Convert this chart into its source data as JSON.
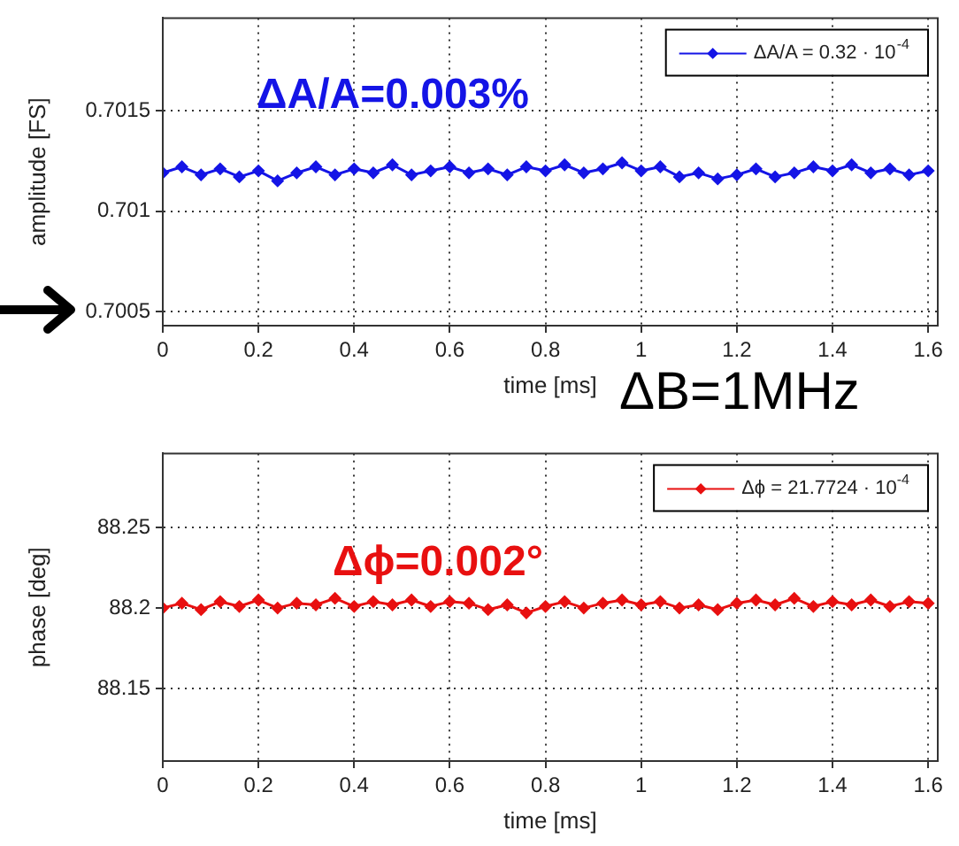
{
  "chart_data": [
    {
      "type": "line",
      "xlabel": "time [ms]",
      "ylabel": "amplitude [FS]",
      "x": [
        0,
        0.04,
        0.08,
        0.12,
        0.16,
        0.2,
        0.24,
        0.28,
        0.32,
        0.36,
        0.4,
        0.44,
        0.48,
        0.52,
        0.56,
        0.6,
        0.64,
        0.68,
        0.72,
        0.76,
        0.8,
        0.84,
        0.88,
        0.92,
        0.96,
        1,
        1.04,
        1.08,
        1.12,
        1.16,
        1.2,
        1.24,
        1.28,
        1.32,
        1.36,
        1.4,
        1.44,
        1.48,
        1.52,
        1.56,
        1.6
      ],
      "series": [
        {
          "name": "ΔA/A = 0.32 · 10$^{-4}$",
          "color": "#1414e6",
          "values": [
            0.70119,
            0.70122,
            0.70118,
            0.70121,
            0.70117,
            0.7012,
            0.70115,
            0.70119,
            0.70122,
            0.70118,
            0.70121,
            0.70119,
            0.70123,
            0.70118,
            0.7012,
            0.70122,
            0.70119,
            0.70121,
            0.70118,
            0.70122,
            0.7012,
            0.70123,
            0.70119,
            0.70121,
            0.70124,
            0.7012,
            0.70122,
            0.70117,
            0.70119,
            0.70116,
            0.70118,
            0.70121,
            0.70117,
            0.70119,
            0.70122,
            0.7012,
            0.70123,
            0.70119,
            0.70121,
            0.70118,
            0.7012
          ]
        }
      ],
      "xlim": [
        0,
        1.62
      ],
      "xticks": [
        0,
        0.2,
        0.4,
        0.6,
        0.8,
        1,
        1.2,
        1.4,
        1.6
      ],
      "ylim": [
        0.70043,
        0.70196
      ],
      "yticks": [
        0.7005,
        0.701,
        0.7015
      ],
      "grid": true,
      "legend": "top right",
      "marker": "diamond",
      "line_style": "solid",
      "annotations": [
        "ΔA/A=0.003%",
        "ΔB=1MHz"
      ]
    },
    {
      "type": "line",
      "xlabel": "time [ms]",
      "ylabel": "phase [deg]",
      "x": [
        0,
        0.04,
        0.08,
        0.12,
        0.16,
        0.2,
        0.24,
        0.28,
        0.32,
        0.36,
        0.4,
        0.44,
        0.48,
        0.52,
        0.56,
        0.6,
        0.64,
        0.68,
        0.72,
        0.76,
        0.8,
        0.84,
        0.88,
        0.92,
        0.96,
        1,
        1.04,
        1.08,
        1.12,
        1.16,
        1.2,
        1.24,
        1.28,
        1.32,
        1.36,
        1.4,
        1.44,
        1.48,
        1.52,
        1.56,
        1.6
      ],
      "series": [
        {
          "name": "Δϕ = 21.7724 · 10$^{-4}$",
          "color": "#e81010",
          "values": [
            88.2,
            88.203,
            88.199,
            88.204,
            88.201,
            88.205,
            88.2,
            88.203,
            88.202,
            88.206,
            88.201,
            88.204,
            88.202,
            88.205,
            88.201,
            88.204,
            88.203,
            88.199,
            88.202,
            88.197,
            88.201,
            88.204,
            88.2,
            88.203,
            88.205,
            88.202,
            88.204,
            88.2,
            88.202,
            88.199,
            88.203,
            88.205,
            88.202,
            88.206,
            88.201,
            88.204,
            88.202,
            88.205,
            88.201,
            88.204,
            88.203
          ]
        }
      ],
      "xlim": [
        0,
        1.62
      ],
      "xticks": [
        0,
        0.2,
        0.4,
        0.6,
        0.8,
        1,
        1.2,
        1.4,
        1.6
      ],
      "ylim": [
        88.105,
        88.296
      ],
      "yticks": [
        88.15,
        88.2,
        88.25
      ],
      "grid": true,
      "legend": "top right",
      "marker": "diamond",
      "line_style": "solid",
      "annotations": [
        "Δϕ=0.002°"
      ]
    }
  ]
}
